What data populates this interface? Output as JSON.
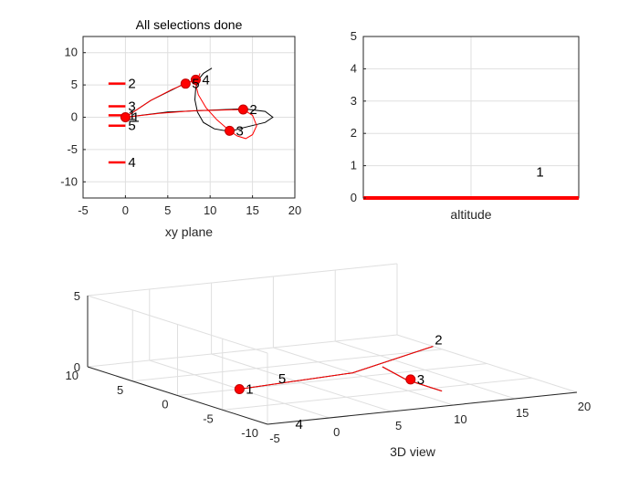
{
  "figure": {
    "title": "All selections done"
  },
  "chart_data": [
    {
      "type": "line",
      "name_key": "xy",
      "xlabel": "xy plane",
      "ylabel": "",
      "xlim": [
        -5,
        20
      ],
      "ylim": [
        -12.5,
        12.5
      ],
      "xticks": [
        "-5",
        "0",
        "5",
        "10",
        "15",
        "20"
      ],
      "yticks": [
        "10",
        "5",
        "0",
        "-5",
        "-10"
      ],
      "grid": true,
      "series": [
        {
          "color": "#000000",
          "points": [
            [
              0,
              0
            ],
            [
              5,
              0.8
            ],
            [
              10,
              1.1
            ],
            [
              14,
              1.3
            ],
            [
              16.5,
              0.9
            ],
            [
              17.4,
              0
            ],
            [
              16.5,
              -0.8
            ],
            [
              14,
              -1.6
            ],
            [
              12.3,
              -2.2
            ],
            [
              10.5,
              -1.8
            ],
            [
              9.2,
              -0.8
            ],
            [
              8.5,
              0.8
            ],
            [
              8.2,
              2.7
            ],
            [
              8.3,
              4.5
            ],
            [
              8.6,
              5.8
            ],
            [
              9.2,
              6.8
            ],
            [
              10.2,
              7.6
            ]
          ]
        },
        {
          "color": "#000000",
          "points": [
            [
              0,
              0
            ],
            [
              3,
              2.6
            ],
            [
              5.6,
              4.3
            ],
            [
              6.8,
              5.1
            ],
            [
              7.5,
              5.8
            ]
          ]
        },
        {
          "color": "#ff0000",
          "points": [
            [
              0,
              0
            ],
            [
              4,
              0.6
            ],
            [
              8,
              1
            ],
            [
              11,
              1.1
            ],
            [
              13.9,
              1.2
            ],
            [
              15,
              0.3
            ],
            [
              15.5,
              -1.3
            ],
            [
              15,
              -2.7
            ],
            [
              14.2,
              -3.3
            ],
            [
              13.2,
              -2.9
            ],
            [
              12.3,
              -2.1
            ],
            [
              10.8,
              -0.4
            ],
            [
              9.5,
              1.5
            ],
            [
              8.6,
              3.5
            ],
            [
              8.3,
              5.1
            ],
            [
              8.8,
              6.8
            ]
          ]
        },
        {
          "color": "#ff0000",
          "points": [
            [
              0,
              0
            ],
            [
              3,
              2.6
            ],
            [
              5.5,
              4.3
            ],
            [
              7.1,
              5.2
            ],
            [
              8.3,
              5.8
            ]
          ]
        }
      ],
      "markers": [
        {
          "label": "1",
          "x": 0,
          "y": 0
        },
        {
          "label": "2",
          "x": 13.9,
          "y": 1.2
        },
        {
          "label": "3",
          "x": 12.3,
          "y": -2.1
        },
        {
          "label": "4",
          "x": 8.3,
          "y": 5.8
        },
        {
          "label": "5",
          "x": 7.1,
          "y": 5.2
        }
      ],
      "side_labels": [
        {
          "label": "2",
          "y": 5.2
        },
        {
          "label": "3",
          "y": 1.7
        },
        {
          "label": "1",
          "y": 0.3
        },
        {
          "label": "5",
          "y": -1.3
        },
        {
          "label": "4",
          "y": -7.0
        }
      ]
    },
    {
      "type": "bar",
      "name_key": "altitude",
      "xlabel": "altitude",
      "ylim": [
        0,
        5
      ],
      "yticks": [
        "5",
        "4",
        "3",
        "2",
        "1",
        "0"
      ],
      "grid": true,
      "values": [
        0
      ],
      "bar_color": "#ff0000",
      "annotations": [
        {
          "label": "1",
          "xfrac": 0.82,
          "y": 0.5
        }
      ]
    },
    {
      "type": "line",
      "name_key": "3d",
      "xlabel": "3D view",
      "xlim": [
        -5,
        20
      ],
      "ylim": [
        -10,
        10
      ],
      "zlim": [
        0,
        5
      ],
      "xticks": [
        "-5",
        "0",
        "5",
        "10",
        "15",
        "20"
      ],
      "yticks": [
        "10",
        "5",
        "0",
        "-5",
        "-10"
      ],
      "zticks": [
        "5",
        "0"
      ],
      "grid": true,
      "series": [
        {
          "color": "#000000",
          "points": [
            [
              0,
              0,
              0
            ],
            [
              10,
              1.2,
              0
            ],
            [
              20,
              6.0,
              0
            ]
          ]
        },
        {
          "color": "#ff0000",
          "points": [
            [
              0,
              0,
              0
            ],
            [
              10,
              1.2,
              0
            ],
            [
              20,
              6.0,
              0
            ]
          ]
        },
        {
          "color": "#000000",
          "points": [
            [
              12,
              -6,
              0
            ],
            [
              12,
              -2,
              0
            ],
            [
              13,
              2,
              0
            ]
          ]
        },
        {
          "color": "#ff0000",
          "points": [
            [
              12,
              -6,
              0
            ],
            [
              12,
              -2,
              0
            ],
            [
              13,
              2,
              0
            ]
          ]
        }
      ],
      "markers": [
        {
          "label": "1",
          "x": 0,
          "y": 0,
          "z": 0
        },
        {
          "label": "3",
          "x": 12.3,
          "y": -2.1,
          "z": 0
        }
      ],
      "text_labels": [
        {
          "label": "2",
          "x": 20.5,
          "y": 6.5,
          "z": 0
        },
        {
          "label": "5",
          "x": 3.5,
          "y": 0.5,
          "z": 0
        },
        {
          "label": "4",
          "x": -4.2,
          "y": -12,
          "z": 0
        }
      ]
    }
  ]
}
